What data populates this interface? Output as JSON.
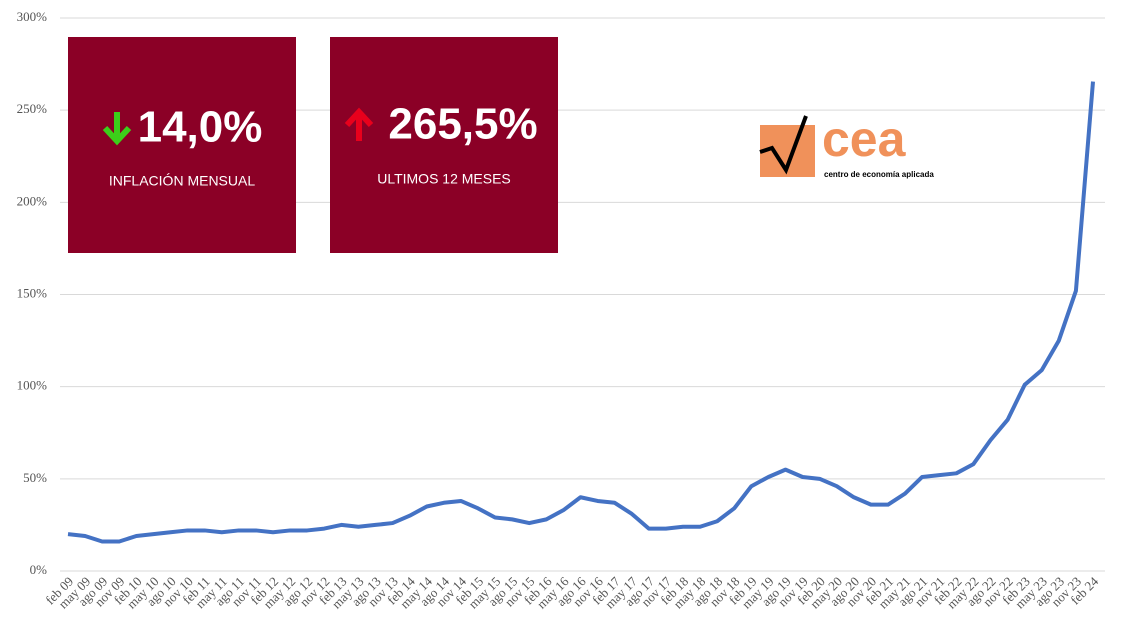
{
  "chart_data": {
    "type": "line",
    "categories": [
      "feb 09",
      "may 09",
      "ago 09",
      "nov 09",
      "feb 10",
      "may 10",
      "ago 10",
      "nov 10",
      "feb 11",
      "may 11",
      "ago 11",
      "nov 11",
      "feb 12",
      "may 12",
      "ago 12",
      "nov 12",
      "feb 13",
      "may 13",
      "ago 13",
      "nov 13",
      "feb 14",
      "may 14",
      "ago 14",
      "nov 14",
      "feb 15",
      "may 15",
      "ago 15",
      "nov 15",
      "feb 16",
      "may 16",
      "ago 16",
      "nov 16",
      "feb 17",
      "may 17",
      "ago 17",
      "nov 17",
      "feb 18",
      "may 18",
      "ago 18",
      "nov 18",
      "feb 19",
      "may 19",
      "ago 19",
      "nov 19",
      "feb 20",
      "may 20",
      "ago 20",
      "nov 20",
      "feb 21",
      "may 21",
      "ago 21",
      "nov 21",
      "feb 22",
      "may 22",
      "ago 22",
      "nov 22",
      "feb 23",
      "may 23",
      "ago 23",
      "nov 23",
      "feb 24"
    ],
    "series": [
      {
        "color": "#4472c4",
        "values": [
          20,
          19,
          16,
          16,
          19,
          20,
          21,
          22,
          22,
          21,
          22,
          22,
          21,
          22,
          22,
          23,
          25,
          24,
          25,
          26,
          30,
          35,
          37,
          38,
          34,
          29,
          28,
          26,
          28,
          33,
          40,
          38,
          37,
          31,
          23,
          23,
          24,
          24,
          27,
          34,
          46,
          51,
          55,
          51,
          50,
          46,
          40,
          36,
          36,
          42,
          51,
          52,
          53,
          58,
          71,
          82,
          101,
          109,
          125,
          152,
          265.5
        ]
      }
    ],
    "ylim": [
      0,
      300
    ],
    "yticks": [
      {
        "value": 0,
        "label": "0%"
      },
      {
        "value": 50,
        "label": "50%"
      },
      {
        "value": 100,
        "label": "100%"
      },
      {
        "value": 150,
        "label": "150%"
      },
      {
        "value": 200,
        "label": "200%"
      },
      {
        "value": 250,
        "label": "250%"
      },
      {
        "value": 300,
        "label": "300%"
      }
    ],
    "grid": true
  },
  "cards": [
    {
      "value": "14,0%",
      "label": "INFLACIÓN MENSUAL"
    },
    {
      "value": "265,5%",
      "label": "ULTIMOS 12 MESES"
    }
  ],
  "logo": {
    "name": "cea",
    "subtitle": "centro de economía aplicada"
  }
}
